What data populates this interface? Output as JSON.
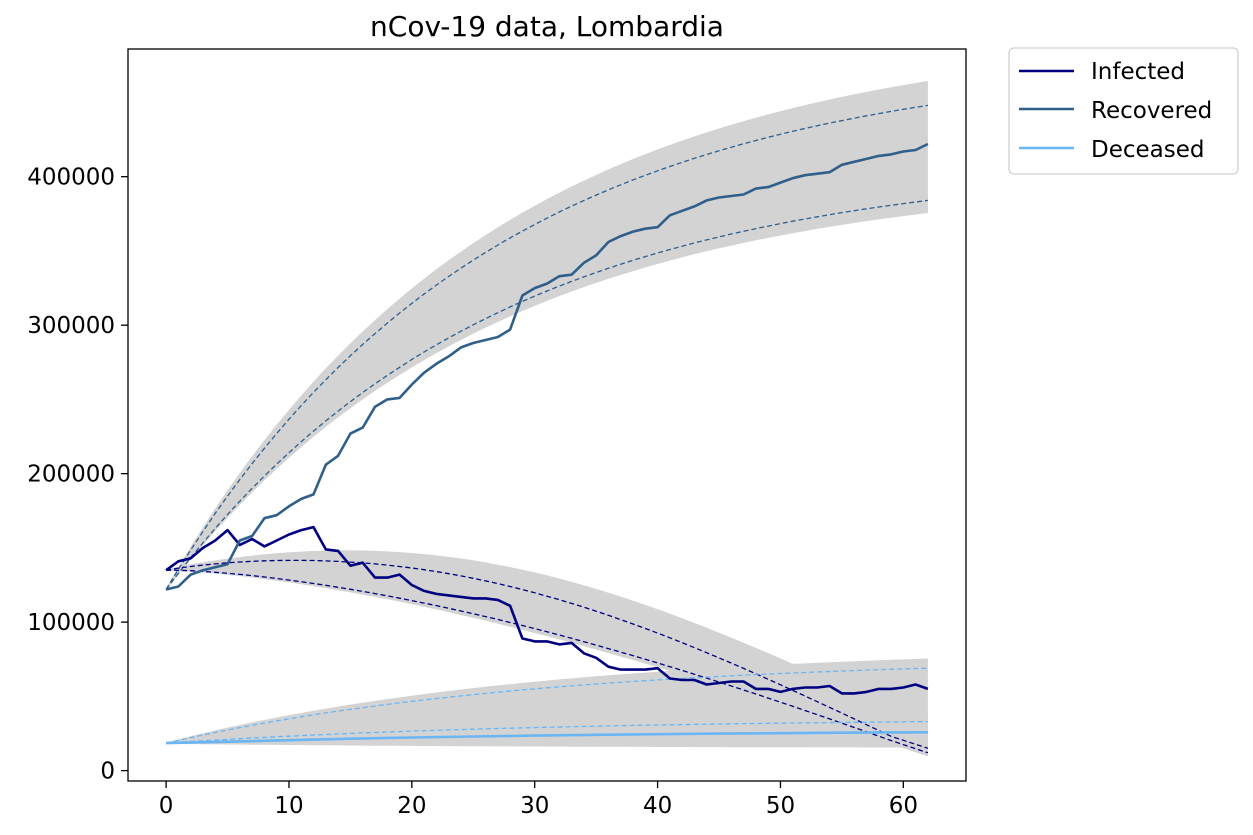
{
  "chart_data": {
    "type": "line",
    "title": "nCov-19 data, Lombardia",
    "xlabel": "",
    "ylabel": "",
    "xlim": [
      -3.1,
      65.1
    ],
    "ylim": [
      -7000,
      486000
    ],
    "x_ticks": [
      0,
      10,
      20,
      30,
      40,
      50,
      60
    ],
    "y_ticks": [
      0,
      100000,
      200000,
      300000,
      400000
    ],
    "x_tick_labels": [
      "0",
      "10",
      "20",
      "30",
      "40",
      "50",
      "60"
    ],
    "y_tick_labels": [
      "0",
      "100000",
      "200000",
      "300000",
      "400000"
    ],
    "grid": false,
    "legend_position": "outside-top-right",
    "colors": {
      "infected": "#000080",
      "recovered": "#2f5f8a",
      "deceased": "#6ab6f5",
      "ensemble": "#d3d3d3"
    },
    "series": [
      {
        "name": "Infected",
        "x": [
          0,
          1,
          2,
          3,
          4,
          5,
          6,
          7,
          8,
          9,
          10,
          11,
          12,
          13,
          14,
          15,
          16,
          17,
          18,
          19,
          20,
          21,
          22,
          23,
          24,
          25,
          26,
          27,
          28,
          29,
          30,
          31,
          32,
          33,
          34,
          35,
          36,
          37,
          38,
          39,
          40,
          41,
          42,
          43,
          44,
          45,
          46,
          47,
          48,
          49,
          50,
          51,
          52,
          53,
          54,
          55,
          56,
          57,
          58,
          59,
          60,
          61,
          62
        ],
        "values": [
          135000,
          141000,
          143000,
          150000,
          155000,
          162000,
          152000,
          156000,
          151000,
          155000,
          159000,
          162000,
          164000,
          149000,
          148000,
          138000,
          140000,
          130000,
          130000,
          132000,
          125000,
          121000,
          119000,
          118000,
          117000,
          116000,
          116000,
          115000,
          111000,
          89000,
          87000,
          87000,
          85000,
          86000,
          79000,
          76000,
          70000,
          68000,
          68000,
          68000,
          69000,
          62000,
          61000,
          61000,
          58000,
          59000,
          60000,
          60000,
          55000,
          55000,
          53000,
          55000,
          56000,
          56000,
          57000,
          52000,
          52000,
          53000,
          55000,
          55000,
          56000,
          58000,
          55000
        ]
      },
      {
        "name": "Recovered",
        "x": [
          0,
          1,
          2,
          3,
          4,
          5,
          6,
          7,
          8,
          9,
          10,
          11,
          12,
          13,
          14,
          15,
          16,
          17,
          18,
          19,
          20,
          21,
          22,
          23,
          24,
          25,
          26,
          27,
          28,
          29,
          30,
          31,
          32,
          33,
          34,
          35,
          36,
          37,
          38,
          39,
          40,
          41,
          42,
          43,
          44,
          45,
          46,
          47,
          48,
          49,
          50,
          51,
          52,
          53,
          54,
          55,
          56,
          57,
          58,
          59,
          60,
          61,
          62
        ],
        "values": [
          122000,
          124000,
          132000,
          135000,
          137000,
          139000,
          155000,
          158000,
          170000,
          172000,
          178000,
          183000,
          186000,
          206000,
          212000,
          227000,
          231000,
          245000,
          250000,
          251000,
          260000,
          268000,
          274000,
          279000,
          285000,
          288000,
          290000,
          292000,
          297000,
          320000,
          325000,
          328000,
          333000,
          334000,
          342000,
          347000,
          356000,
          360000,
          363000,
          365000,
          366000,
          374000,
          377000,
          380000,
          384000,
          386000,
          387000,
          388000,
          392000,
          393000,
          396000,
          399000,
          401000,
          402000,
          403000,
          408000,
          410000,
          412000,
          414000,
          415000,
          417000,
          418000,
          422000
        ]
      },
      {
        "name": "Deceased",
        "x": [
          0,
          5,
          10,
          15,
          20,
          25,
          30,
          35,
          40,
          45,
          50,
          55,
          60,
          62
        ],
        "values": [
          18500,
          19500,
          20500,
          21500,
          22300,
          23000,
          23600,
          24100,
          24500,
          24900,
          25200,
          25500,
          25700,
          25800
        ]
      }
    ],
    "legend": [
      "Infected",
      "Recovered",
      "Deceased"
    ]
  }
}
